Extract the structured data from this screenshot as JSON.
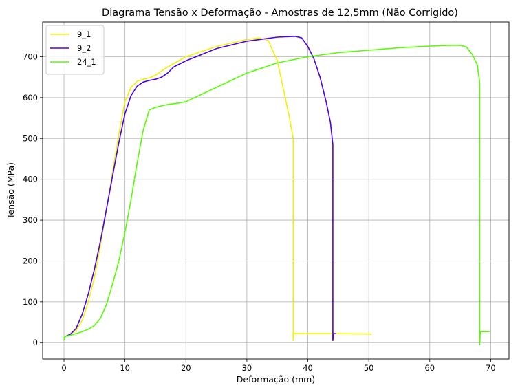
{
  "chart_data": {
    "type": "line",
    "title": "Diagrama Tensão x Deformação - Amostras de 12,5mm (Não Corrigido)",
    "xlabel": "Deformação (mm)",
    "ylabel": "Tensão (MPa)",
    "xlim": [
      -3.5,
      73
    ],
    "ylim": [
      -40,
      785
    ],
    "xticks": [
      0,
      10,
      20,
      30,
      40,
      50,
      60,
      70
    ],
    "yticks": [
      0,
      100,
      200,
      300,
      400,
      500,
      600,
      700
    ],
    "grid": true,
    "legend_position": "top-left",
    "series": [
      {
        "name": "9_1",
        "color": "#f2f200",
        "points": [
          [
            0,
            5
          ],
          [
            0.1,
            15
          ],
          [
            1,
            20
          ],
          [
            2,
            30
          ],
          [
            3,
            55
          ],
          [
            4,
            100
          ],
          [
            5,
            160
          ],
          [
            6,
            240
          ],
          [
            7,
            330
          ],
          [
            8,
            420
          ],
          [
            9,
            510
          ],
          [
            10,
            590
          ],
          [
            11,
            625
          ],
          [
            12,
            640
          ],
          [
            13,
            645
          ],
          [
            14,
            648
          ],
          [
            15,
            655
          ],
          [
            16,
            665
          ],
          [
            17,
            675
          ],
          [
            20,
            700
          ],
          [
            25,
            725
          ],
          [
            30,
            742
          ],
          [
            32,
            746
          ],
          [
            33.5,
            740
          ],
          [
            35,
            690
          ],
          [
            36,
            620
          ],
          [
            37,
            550
          ],
          [
            37.6,
            500
          ],
          [
            37.6,
            5
          ],
          [
            37.7,
            22
          ],
          [
            40,
            22
          ],
          [
            45,
            22
          ],
          [
            50.5,
            21
          ]
        ]
      },
      {
        "name": "9_2",
        "color": "#4a00ee",
        "points": [
          [
            0,
            10
          ],
          [
            0.2,
            15
          ],
          [
            1,
            20
          ],
          [
            2,
            35
          ],
          [
            3,
            70
          ],
          [
            4,
            120
          ],
          [
            5,
            180
          ],
          [
            6,
            250
          ],
          [
            7,
            330
          ],
          [
            8,
            410
          ],
          [
            9,
            490
          ],
          [
            10,
            560
          ],
          [
            11,
            605
          ],
          [
            12,
            628
          ],
          [
            13,
            638
          ],
          [
            14,
            642
          ],
          [
            15,
            645
          ],
          [
            16,
            650
          ],
          [
            17,
            660
          ],
          [
            18,
            675
          ],
          [
            20,
            690
          ],
          [
            25,
            720
          ],
          [
            30,
            738
          ],
          [
            35,
            748
          ],
          [
            38,
            750
          ],
          [
            39,
            746
          ],
          [
            40,
            725
          ],
          [
            41,
            695
          ],
          [
            42,
            650
          ],
          [
            43,
            590
          ],
          [
            43.7,
            540
          ],
          [
            44.1,
            485
          ],
          [
            44.1,
            5
          ],
          [
            44.2,
            22
          ],
          [
            44.6,
            22
          ]
        ]
      },
      {
        "name": "24_1",
        "color": "#55ff00",
        "points": [
          [
            0,
            5
          ],
          [
            0.1,
            15
          ],
          [
            1,
            18
          ],
          [
            2,
            22
          ],
          [
            3,
            27
          ],
          [
            4,
            33
          ],
          [
            5,
            42
          ],
          [
            6,
            60
          ],
          [
            7,
            95
          ],
          [
            8,
            145
          ],
          [
            9,
            200
          ],
          [
            10,
            270
          ],
          [
            11,
            350
          ],
          [
            12,
            440
          ],
          [
            13,
            520
          ],
          [
            14,
            570
          ],
          [
            15,
            576
          ],
          [
            16,
            580
          ],
          [
            17,
            583
          ],
          [
            18,
            585
          ],
          [
            19,
            587
          ],
          [
            20,
            590
          ],
          [
            21,
            597
          ],
          [
            25,
            625
          ],
          [
            30,
            660
          ],
          [
            35,
            685
          ],
          [
            40,
            700
          ],
          [
            45,
            710
          ],
          [
            50,
            716
          ],
          [
            55,
            722
          ],
          [
            60,
            726
          ],
          [
            63,
            728
          ],
          [
            65,
            728
          ],
          [
            66,
            724
          ],
          [
            67,
            705
          ],
          [
            67.8,
            680
          ],
          [
            68.2,
            635
          ],
          [
            68.2,
            -5
          ],
          [
            68.3,
            27
          ],
          [
            69.8,
            27
          ]
        ]
      }
    ]
  }
}
